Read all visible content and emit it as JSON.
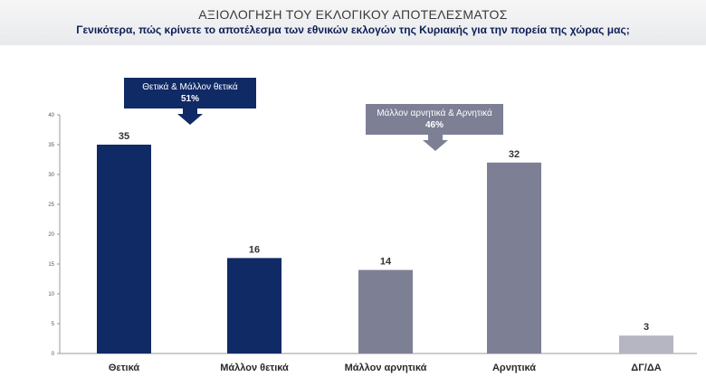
{
  "header": {
    "title": "ΑΞΙΟΛΟΓΗΣΗ ΤΟΥ ΕΚΛΟΓΙΚΟΥ ΑΠΟΤΕΛΕΣΜΑΤΟΣ",
    "subtitle": "Γενικότερα, πώς κρίνετε το αποτέλεσμα των εθνικών εκλογών της Κυριακής για την πορεία της χώρας μας;"
  },
  "callouts": {
    "positive": {
      "label": "Θετικά & Μάλλον θετικά",
      "value": "51%"
    },
    "negative": {
      "label": "Μάλλον αρνητικά & Αρνητικά",
      "value": "46%"
    }
  },
  "colors": {
    "positive_bar": "#102a66",
    "negative_bar": "#7d7f95",
    "dk_bar": "#b5b6c2",
    "axis": "#9a9a9a"
  },
  "chart_data": {
    "type": "bar",
    "title": "ΑΞΙΟΛΟΓΗΣΗ ΤΟΥ ΕΚΛΟΓΙΚΟΥ ΑΠΟΤΕΛΕΣΜΑΤΟΣ",
    "categories": [
      "Θετικά",
      "Μάλλον θετικά",
      "Μάλλον αρνητικά",
      "Αρνητικά",
      "ΔΓ/ΔΑ"
    ],
    "values": [
      35,
      16,
      14,
      32,
      3
    ],
    "ylim": [
      0,
      40
    ],
    "yticks": [
      0,
      5,
      10,
      15,
      20,
      25,
      30,
      35,
      40
    ],
    "grid": false,
    "data_labels": true,
    "xlabel": "",
    "ylabel": ""
  }
}
